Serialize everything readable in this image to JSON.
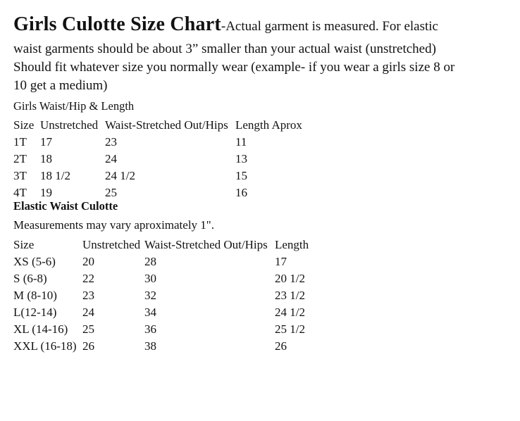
{
  "colors": {
    "text": "#121212",
    "background": "#ffffff"
  },
  "document": {
    "title": "Girls Culotte Size Chart",
    "intro_lines": [
      "-Actual garment is measured. For elastic",
      "waist garments should be about 3” smaller than your actual waist (unstretched)",
      "Should fit whatever size you normally wear (example- if you wear a girls size 8 or",
      "10 get a medium)"
    ]
  },
  "toddler_section": {
    "heading": "Girls Waist/Hip & Length",
    "table": {
      "headers": [
        "Size",
        "Unstretched",
        "Waist-Stretched Out/Hips",
        "Length Aprox"
      ],
      "rows": [
        [
          "1T",
          "17",
          "23",
          "11"
        ],
        [
          "2T",
          "18",
          "24",
          "13"
        ],
        [
          "3T",
          "18 1/2",
          "24 1/2",
          "15"
        ],
        [
          "4T",
          "19",
          "25",
          "16"
        ]
      ]
    }
  },
  "elastic_section": {
    "heading": "Elastic Waist Culotte",
    "note": "Measurements may vary aproximately 1\".",
    "table": {
      "headers": [
        "Size",
        "Unstretched",
        "Waist-Stretched Out/Hips",
        "Length"
      ],
      "rows": [
        [
          "XS (5-6)",
          "20",
          "28",
          "17"
        ],
        [
          "S (6-8)",
          "22",
          "30",
          "20 1/2"
        ],
        [
          "M (8-10)",
          "23",
          "32",
          "23 1/2"
        ],
        [
          "L(12-14)",
          "24",
          "34",
          "24 1/2"
        ],
        [
          "XL (14-16)",
          "25",
          "36",
          "25 1/2"
        ],
        [
          "XXL (16-18)",
          "26",
          "38",
          "26"
        ]
      ]
    }
  }
}
